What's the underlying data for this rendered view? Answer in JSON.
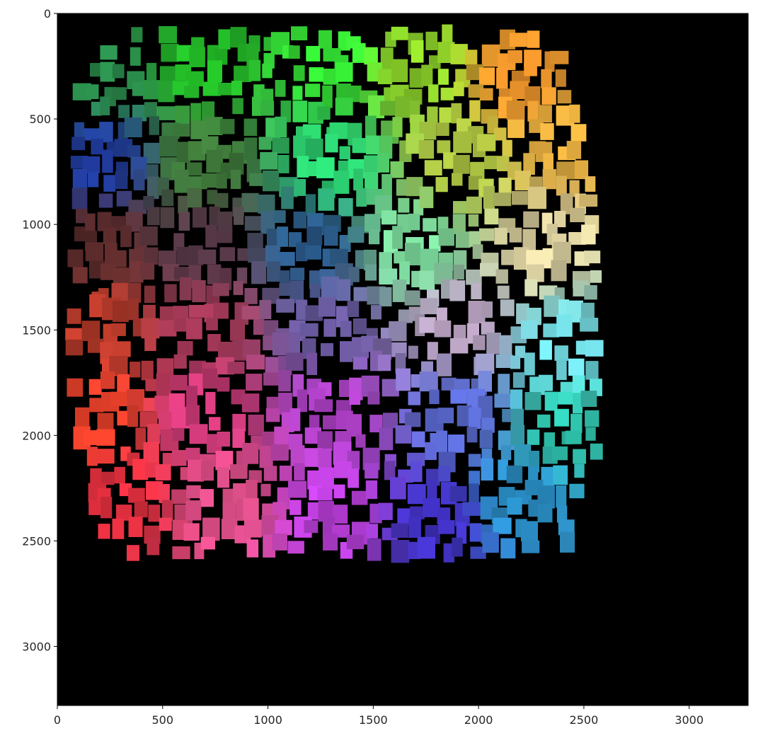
{
  "chart_data": {
    "type": "heatmap",
    "title": "",
    "xlabel": "",
    "ylabel": "",
    "xlim": [
      0,
      3280
    ],
    "ylim": [
      3280,
      0
    ],
    "y_axis_inverted": true,
    "background_color": "#000000",
    "grid": false,
    "legend": "none",
    "x_ticks": [
      0,
      500,
      1000,
      1500,
      2000,
      2500,
      3000
    ],
    "y_ticks": [
      0,
      500,
      1000,
      1500,
      2000,
      2500,
      3000
    ],
    "x_tick_labels": [
      "0",
      "500",
      "1000",
      "1500",
      "2000",
      "2500",
      "3000"
    ],
    "y_tick_labels": [
      "0",
      "500",
      "1000",
      "1500",
      "2000",
      "2500",
      "3000"
    ],
    "mosaic_extent": {
      "x": [
        100,
        2550
      ],
      "y": [
        120,
        2560
      ]
    },
    "mosaic_block_size_approx": [
      85,
      105
    ],
    "corner_colors": {
      "top_left": "#2f7d3a",
      "top_right": "#e89a2c",
      "bottom_left": "#e8302a",
      "bottom_right": "#2a6fd6"
    },
    "region_colors": [
      {
        "x": 200,
        "y": 300,
        "color": "#2a8a4a"
      },
      {
        "x": 700,
        "y": 250,
        "color": "#22b826"
      },
      {
        "x": 1300,
        "y": 250,
        "color": "#33e033"
      },
      {
        "x": 1700,
        "y": 250,
        "color": "#8fd62a"
      },
      {
        "x": 2200,
        "y": 300,
        "color": "#e6902a"
      },
      {
        "x": 2400,
        "y": 600,
        "color": "#e8b040"
      },
      {
        "x": 200,
        "y": 700,
        "color": "#1f3a9a"
      },
      {
        "x": 700,
        "y": 700,
        "color": "#3f7a3a"
      },
      {
        "x": 1300,
        "y": 700,
        "color": "#2ad070"
      },
      {
        "x": 1900,
        "y": 700,
        "color": "#a8c040"
      },
      {
        "x": 200,
        "y": 1100,
        "color": "#5a2a2a"
      },
      {
        "x": 700,
        "y": 1100,
        "color": "#5a3a4a"
      },
      {
        "x": 1200,
        "y": 1100,
        "color": "#2a5a8a"
      },
      {
        "x": 1700,
        "y": 1100,
        "color": "#7ad89a"
      },
      {
        "x": 2300,
        "y": 1100,
        "color": "#dcd0a0"
      },
      {
        "x": 200,
        "y": 1500,
        "color": "#b83a2a"
      },
      {
        "x": 700,
        "y": 1500,
        "color": "#a83a5a"
      },
      {
        "x": 1300,
        "y": 1500,
        "color": "#6a5aa0"
      },
      {
        "x": 1900,
        "y": 1500,
        "color": "#c0a8c8"
      },
      {
        "x": 2400,
        "y": 1600,
        "color": "#70d8e0"
      },
      {
        "x": 200,
        "y": 1900,
        "color": "#e8402a"
      },
      {
        "x": 700,
        "y": 1900,
        "color": "#d03a7a"
      },
      {
        "x": 1300,
        "y": 1900,
        "color": "#b040c8"
      },
      {
        "x": 1900,
        "y": 1900,
        "color": "#5a6ad0"
      },
      {
        "x": 2400,
        "y": 1950,
        "color": "#30c8b0"
      },
      {
        "x": 300,
        "y": 2300,
        "color": "#e83040"
      },
      {
        "x": 800,
        "y": 2300,
        "color": "#e0508a"
      },
      {
        "x": 1300,
        "y": 2350,
        "color": "#c040e0"
      },
      {
        "x": 1800,
        "y": 2400,
        "color": "#4030c0"
      },
      {
        "x": 2200,
        "y": 2300,
        "color": "#2a90c8"
      }
    ]
  }
}
